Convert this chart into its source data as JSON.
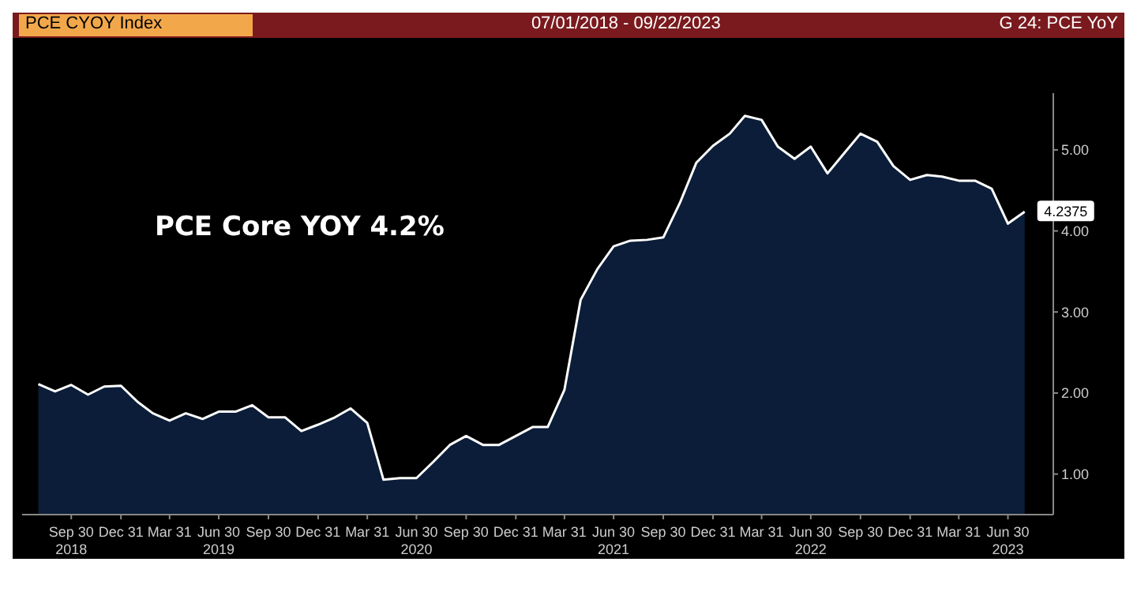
{
  "chart_data": {
    "type": "area",
    "title": "PCE Core YOY 4.2%",
    "x": [
      "2018-07-31",
      "2018-08-31",
      "2018-09-30",
      "2018-10-31",
      "2018-11-30",
      "2018-12-31",
      "2019-01-31",
      "2019-02-28",
      "2019-03-31",
      "2019-04-30",
      "2019-05-31",
      "2019-06-30",
      "2019-07-31",
      "2019-08-31",
      "2019-09-30",
      "2019-10-31",
      "2019-11-30",
      "2019-12-31",
      "2020-01-31",
      "2020-02-29",
      "2020-03-31",
      "2020-04-30",
      "2020-05-31",
      "2020-06-30",
      "2020-07-31",
      "2020-08-31",
      "2020-09-30",
      "2020-10-31",
      "2020-11-30",
      "2020-12-31",
      "2021-01-31",
      "2021-02-28",
      "2021-03-31",
      "2021-04-30",
      "2021-05-31",
      "2021-06-30",
      "2021-07-31",
      "2021-08-31",
      "2021-09-30",
      "2021-10-31",
      "2021-11-30",
      "2021-12-31",
      "2022-01-31",
      "2022-02-28",
      "2022-03-31",
      "2022-04-30",
      "2022-05-31",
      "2022-06-30",
      "2022-07-31",
      "2022-08-31",
      "2022-09-30",
      "2022-10-31",
      "2022-11-30",
      "2022-12-31",
      "2023-01-31",
      "2023-02-28",
      "2023-03-31",
      "2023-04-30",
      "2023-05-31",
      "2023-06-30",
      "2023-07-31"
    ],
    "series": [
      {
        "color": "#0b1d38",
        "values": [
          2.11,
          2.02,
          2.1,
          1.98,
          2.08,
          2.09,
          1.89,
          1.75,
          1.66,
          1.75,
          1.68,
          1.77,
          1.77,
          1.85,
          1.7,
          1.7,
          1.53,
          1.61,
          1.7,
          1.81,
          1.63,
          0.93,
          0.95,
          0.95,
          1.15,
          1.36,
          1.47,
          1.36,
          1.36,
          1.47,
          1.58,
          1.58,
          2.04,
          3.15,
          3.53,
          3.81,
          3.88,
          3.89,
          3.92,
          4.35,
          4.84,
          5.05,
          5.2,
          5.42,
          5.37,
          5.04,
          4.89,
          5.04,
          4.71,
          4.96,
          5.2,
          5.1,
          4.8,
          4.63,
          4.69,
          4.67,
          4.62,
          4.62,
          4.52,
          4.09,
          4.2375
        ],
        "value_labels": [
          null,
          null,
          null,
          null,
          null,
          null,
          null,
          null,
          null,
          null,
          null,
          null,
          null,
          null,
          null,
          null,
          null,
          null,
          null,
          null,
          null,
          null,
          null,
          null,
          null,
          null,
          null,
          null,
          null,
          null,
          null,
          null,
          null,
          null,
          null,
          null,
          null,
          null,
          null,
          null,
          null,
          null,
          null,
          null,
          null,
          null,
          null,
          null,
          null,
          null,
          null,
          null,
          null,
          null,
          null,
          null,
          null,
          null,
          null,
          null,
          "4.2375"
        ]
      }
    ],
    "xlim": [
      "2018-07-01",
      "2023-09-22"
    ],
    "xticks": [
      {
        "value": "2018-09-30",
        "label": "Sep 30\n2018"
      },
      {
        "value": "2018-12-31",
        "label": "Dec 31"
      },
      {
        "value": "2019-03-31",
        "label": "Mar 31"
      },
      {
        "value": "2019-06-30",
        "label": "Jun 30\n2019"
      },
      {
        "value": "2019-09-30",
        "label": "Sep 30"
      },
      {
        "value": "2019-12-31",
        "label": "Dec 31"
      },
      {
        "value": "2020-03-31",
        "label": "Mar 31"
      },
      {
        "value": "2020-06-30",
        "label": "Jun 30\n2020"
      },
      {
        "value": "2020-09-30",
        "label": "Sep 30"
      },
      {
        "value": "2020-12-31",
        "label": "Dec 31"
      },
      {
        "value": "2021-03-31",
        "label": "Mar 31"
      },
      {
        "value": "2021-06-30",
        "label": "Jun 30\n2021"
      },
      {
        "value": "2021-09-30",
        "label": "Sep 30"
      },
      {
        "value": "2021-12-31",
        "label": "Dec 31"
      },
      {
        "value": "2022-03-31",
        "label": "Mar 31"
      },
      {
        "value": "2022-06-30",
        "label": "Jun 30\n2022"
      },
      {
        "value": "2022-09-30",
        "label": "Sep 30"
      },
      {
        "value": "2022-12-31",
        "label": "Dec 31"
      },
      {
        "value": "2023-03-31",
        "label": "Mar 31"
      },
      {
        "value": "2023-06-30",
        "label": "Jun 30\n2023"
      }
    ],
    "ylim": [
      0.5,
      5.7
    ],
    "yticks": [
      {
        "value": 1,
        "label": "1.00"
      },
      {
        "value": 2,
        "label": "2.00"
      },
      {
        "value": 3,
        "label": "3.00"
      },
      {
        "value": 4,
        "label": "4.00"
      },
      {
        "value": 5,
        "label": "5.00"
      }
    ],
    "annotations": [
      "PCE CYOY Index",
      "07/01/2018 - 09/22/2023",
      "G 24: PCE YoY"
    ],
    "grid": false,
    "legend": false
  }
}
